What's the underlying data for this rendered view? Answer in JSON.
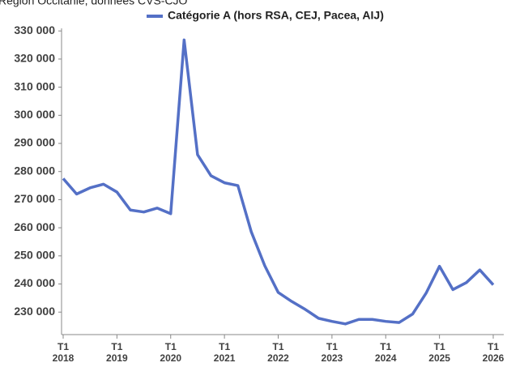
{
  "chart_data": {
    "type": "line",
    "subtitle": "Région Occitanie, données CVS-CJO",
    "categories": [
      "T1\n2018",
      null,
      null,
      null,
      "T1\n2019",
      null,
      null,
      null,
      "T1\n2020",
      null,
      null,
      null,
      "T1\n2021",
      null,
      null,
      null,
      "T1\n2022",
      null,
      null,
      null,
      "T1\n2023",
      null,
      null,
      null,
      "T1\n2024",
      null,
      null,
      null,
      "T1\n2025",
      null,
      null,
      null,
      "T1\n2026"
    ],
    "series": [
      {
        "name": "Catégorie A (hors RSA, CEJ, Pacea, AIJ)",
        "color": "#5470c6",
        "values": [
          277500,
          272000,
          274200,
          275500,
          272700,
          266300,
          265600,
          267000,
          265000,
          326800,
          286000,
          278500,
          276000,
          275000,
          258500,
          246500,
          237000,
          233800,
          231000,
          227800,
          226700,
          225800,
          227400,
          227400,
          226700,
          226300,
          229300,
          236700,
          246300,
          238000,
          240500,
          245000,
          239700
        ]
      }
    ],
    "ylim": [
      222000,
      331500
    ],
    "yticks": [
      {
        "value": 230000,
        "label": "230 000"
      },
      {
        "value": 240000,
        "label": "240 000"
      },
      {
        "value": 250000,
        "label": "250 000"
      },
      {
        "value": 260000,
        "label": "260 000"
      },
      {
        "value": 270000,
        "label": "270 000"
      },
      {
        "value": 280000,
        "label": "280 000"
      },
      {
        "value": 290000,
        "label": "290 000"
      },
      {
        "value": 300000,
        "label": "300 000"
      },
      {
        "value": 310000,
        "label": "310 000"
      },
      {
        "value": 320000,
        "label": "320 000"
      },
      {
        "value": 330000,
        "label": "330 000"
      }
    ],
    "legend": "top"
  }
}
